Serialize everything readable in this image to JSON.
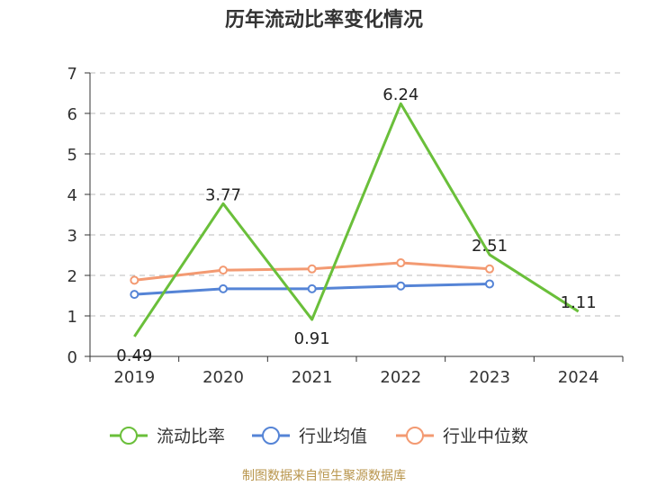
{
  "chart_data": {
    "type": "line",
    "title": "历年流动比率变化情况",
    "categories": [
      "2019",
      "2020",
      "2021",
      "2022",
      "2023",
      "2024"
    ],
    "ylim": [
      0,
      7
    ],
    "yticks": [
      0,
      1,
      2,
      3,
      4,
      5,
      6,
      7
    ],
    "grid": true,
    "legend_position": "bottom",
    "series": [
      {
        "name": "流动比率",
        "color": "#6abf3a",
        "values": [
          0.49,
          3.77,
          0.91,
          6.24,
          2.51,
          1.11
        ],
        "labels": [
          "0.49",
          "3.77",
          "0.91",
          "6.24",
          "2.51",
          "1.11"
        ]
      },
      {
        "name": "行业均值",
        "color": "#5584d6",
        "values": [
          1.53,
          1.67,
          1.67,
          1.74,
          1.79,
          null
        ]
      },
      {
        "name": "行业中位数",
        "color": "#f39a72",
        "values": [
          1.88,
          2.13,
          2.16,
          2.31,
          2.16,
          null
        ]
      }
    ],
    "source": "制图数据来自恒生聚源数据库"
  }
}
